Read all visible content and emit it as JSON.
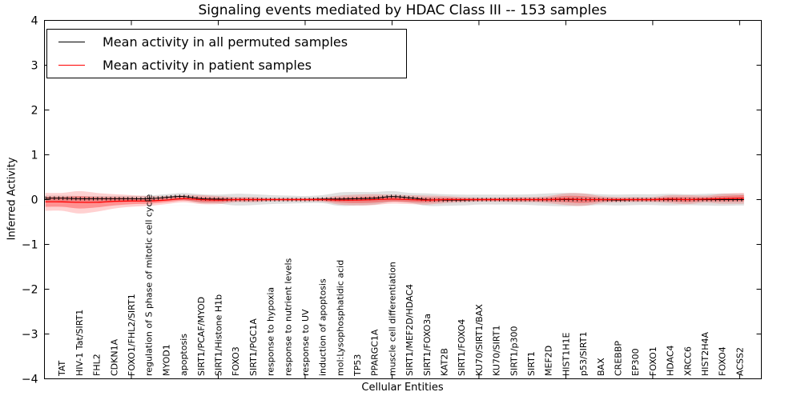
{
  "title": "Signaling events mediated by HDAC Class III -- 153 samples",
  "axes": {
    "xlabel": "Cellular Entities",
    "ylabel": "Inferred Activity",
    "ylim": [
      -4,
      4
    ],
    "yticks": [
      -4,
      -3,
      -2,
      -1,
      0,
      1,
      2,
      3,
      4
    ],
    "xticks": [
      5,
      10,
      15,
      20,
      25,
      30,
      35,
      40
    ]
  },
  "legend": {
    "entries": [
      {
        "label": "Mean activity in all permuted samples",
        "color": "#000000"
      },
      {
        "label": "Mean activity in patient samples",
        "color": "#ff0000"
      }
    ]
  },
  "colors": {
    "frame": "#000000",
    "permuted_line": "#000000",
    "patient_line": "#ff0000",
    "permuted_band": "rgba(0,0,0,0.12)",
    "patient_band_outer": "rgba(255,0,0,0.18)",
    "patient_band_inner": "rgba(255,0,0,0.30)"
  },
  "chart_data": {
    "type": "line",
    "title": "Signaling events mediated by HDAC Class III -- 153 samples",
    "xlabel": "Cellular Entities",
    "ylabel": "Inferred Activity",
    "ylim": [
      -4,
      4
    ],
    "xlim": [
      0,
      41.25
    ],
    "grid": false,
    "legend_position": "upper left",
    "categories": [
      "TAT",
      "HIV-1 Tat/SIRT1",
      "FHL2",
      "CDKN1A",
      "FOXO1/FHL2/SIRT1",
      "regulation of S phase of mitotic cell cycle",
      "MYOD1",
      "apoptosis",
      "SIRT1/PCAF/MYOD",
      "SIRT1/Histone H1b",
      "FOXO3",
      "SIRT1/PGC1A",
      "response to hypoxia",
      "response to nutrient levels",
      "response to UV",
      "induction of apoptosis",
      "mol:Lysophosphatidic acid",
      "TP53",
      "PPARGC1A",
      "muscle cell differentiation",
      "SIRT1/MEF2D/HDAC4",
      "SIRT1/FOXO3a",
      "KAT2B",
      "SIRT1/FOXO4",
      "KU70/SIRT1/BAX",
      "KU70/SIRT1",
      "SIRT1/p300",
      "SIRT1",
      "MEF2D",
      "HIST1H1E",
      "p53/SIRT1",
      "BAX",
      "CREBBP",
      "EP300",
      "FOXO1",
      "HDAC4",
      "XRCC6",
      "HIST2H4A",
      "FOXO4",
      "ACSS2"
    ],
    "series": [
      {
        "name": "Mean activity in all permuted samples",
        "color": "#000000",
        "values": [
          0.03,
          0.02,
          0.02,
          0.02,
          0.02,
          0.02,
          0.05,
          0.07,
          0.02,
          0.01,
          0.0,
          0.0,
          0.0,
          0.0,
          0.0,
          0.01,
          0.01,
          0.02,
          0.03,
          0.07,
          0.04,
          0.0,
          -0.01,
          -0.01,
          0.0,
          0.0,
          0.0,
          0.0,
          0.0,
          0.0,
          0.0,
          0.0,
          -0.01,
          0.0,
          0.0,
          0.0,
          0.0,
          0.0,
          0.0,
          0.0
        ],
        "band_halfwidth": [
          0.06,
          0.06,
          0.06,
          0.06,
          0.06,
          0.07,
          0.07,
          0.08,
          0.1,
          0.1,
          0.13,
          0.12,
          0.1,
          0.09,
          0.08,
          0.09,
          0.15,
          0.15,
          0.14,
          0.12,
          0.11,
          0.14,
          0.13,
          0.12,
          0.11,
          0.11,
          0.11,
          0.12,
          0.14,
          0.15,
          0.14,
          0.12,
          0.12,
          0.12,
          0.12,
          0.13,
          0.12,
          0.13,
          0.14,
          0.13
        ]
      },
      {
        "name": "Mean activity in patient samples",
        "color": "#ff0000",
        "values": [
          -0.05,
          -0.06,
          -0.06,
          -0.04,
          -0.03,
          -0.03,
          -0.01,
          0.02,
          0.0,
          -0.01,
          0.0,
          0.0,
          0.0,
          0.0,
          0.0,
          0.0,
          -0.01,
          -0.01,
          0.0,
          0.01,
          0.0,
          -0.01,
          0.0,
          0.0,
          0.0,
          0.0,
          0.0,
          0.0,
          0.0,
          0.01,
          0.0,
          0.0,
          0.0,
          0.0,
          0.0,
          0.01,
          0.0,
          0.01,
          0.02,
          0.03
        ],
        "band_halfwidth": [
          0.2,
          0.25,
          0.21,
          0.16,
          0.13,
          0.11,
          0.09,
          0.08,
          0.1,
          0.09,
          0.06,
          0.06,
          0.04,
          0.04,
          0.04,
          0.05,
          0.1,
          0.12,
          0.12,
          0.1,
          0.1,
          0.1,
          0.08,
          0.06,
          0.05,
          0.05,
          0.06,
          0.06,
          0.08,
          0.13,
          0.14,
          0.08,
          0.06,
          0.06,
          0.06,
          0.09,
          0.1,
          0.08,
          0.11,
          0.12
        ]
      }
    ]
  }
}
